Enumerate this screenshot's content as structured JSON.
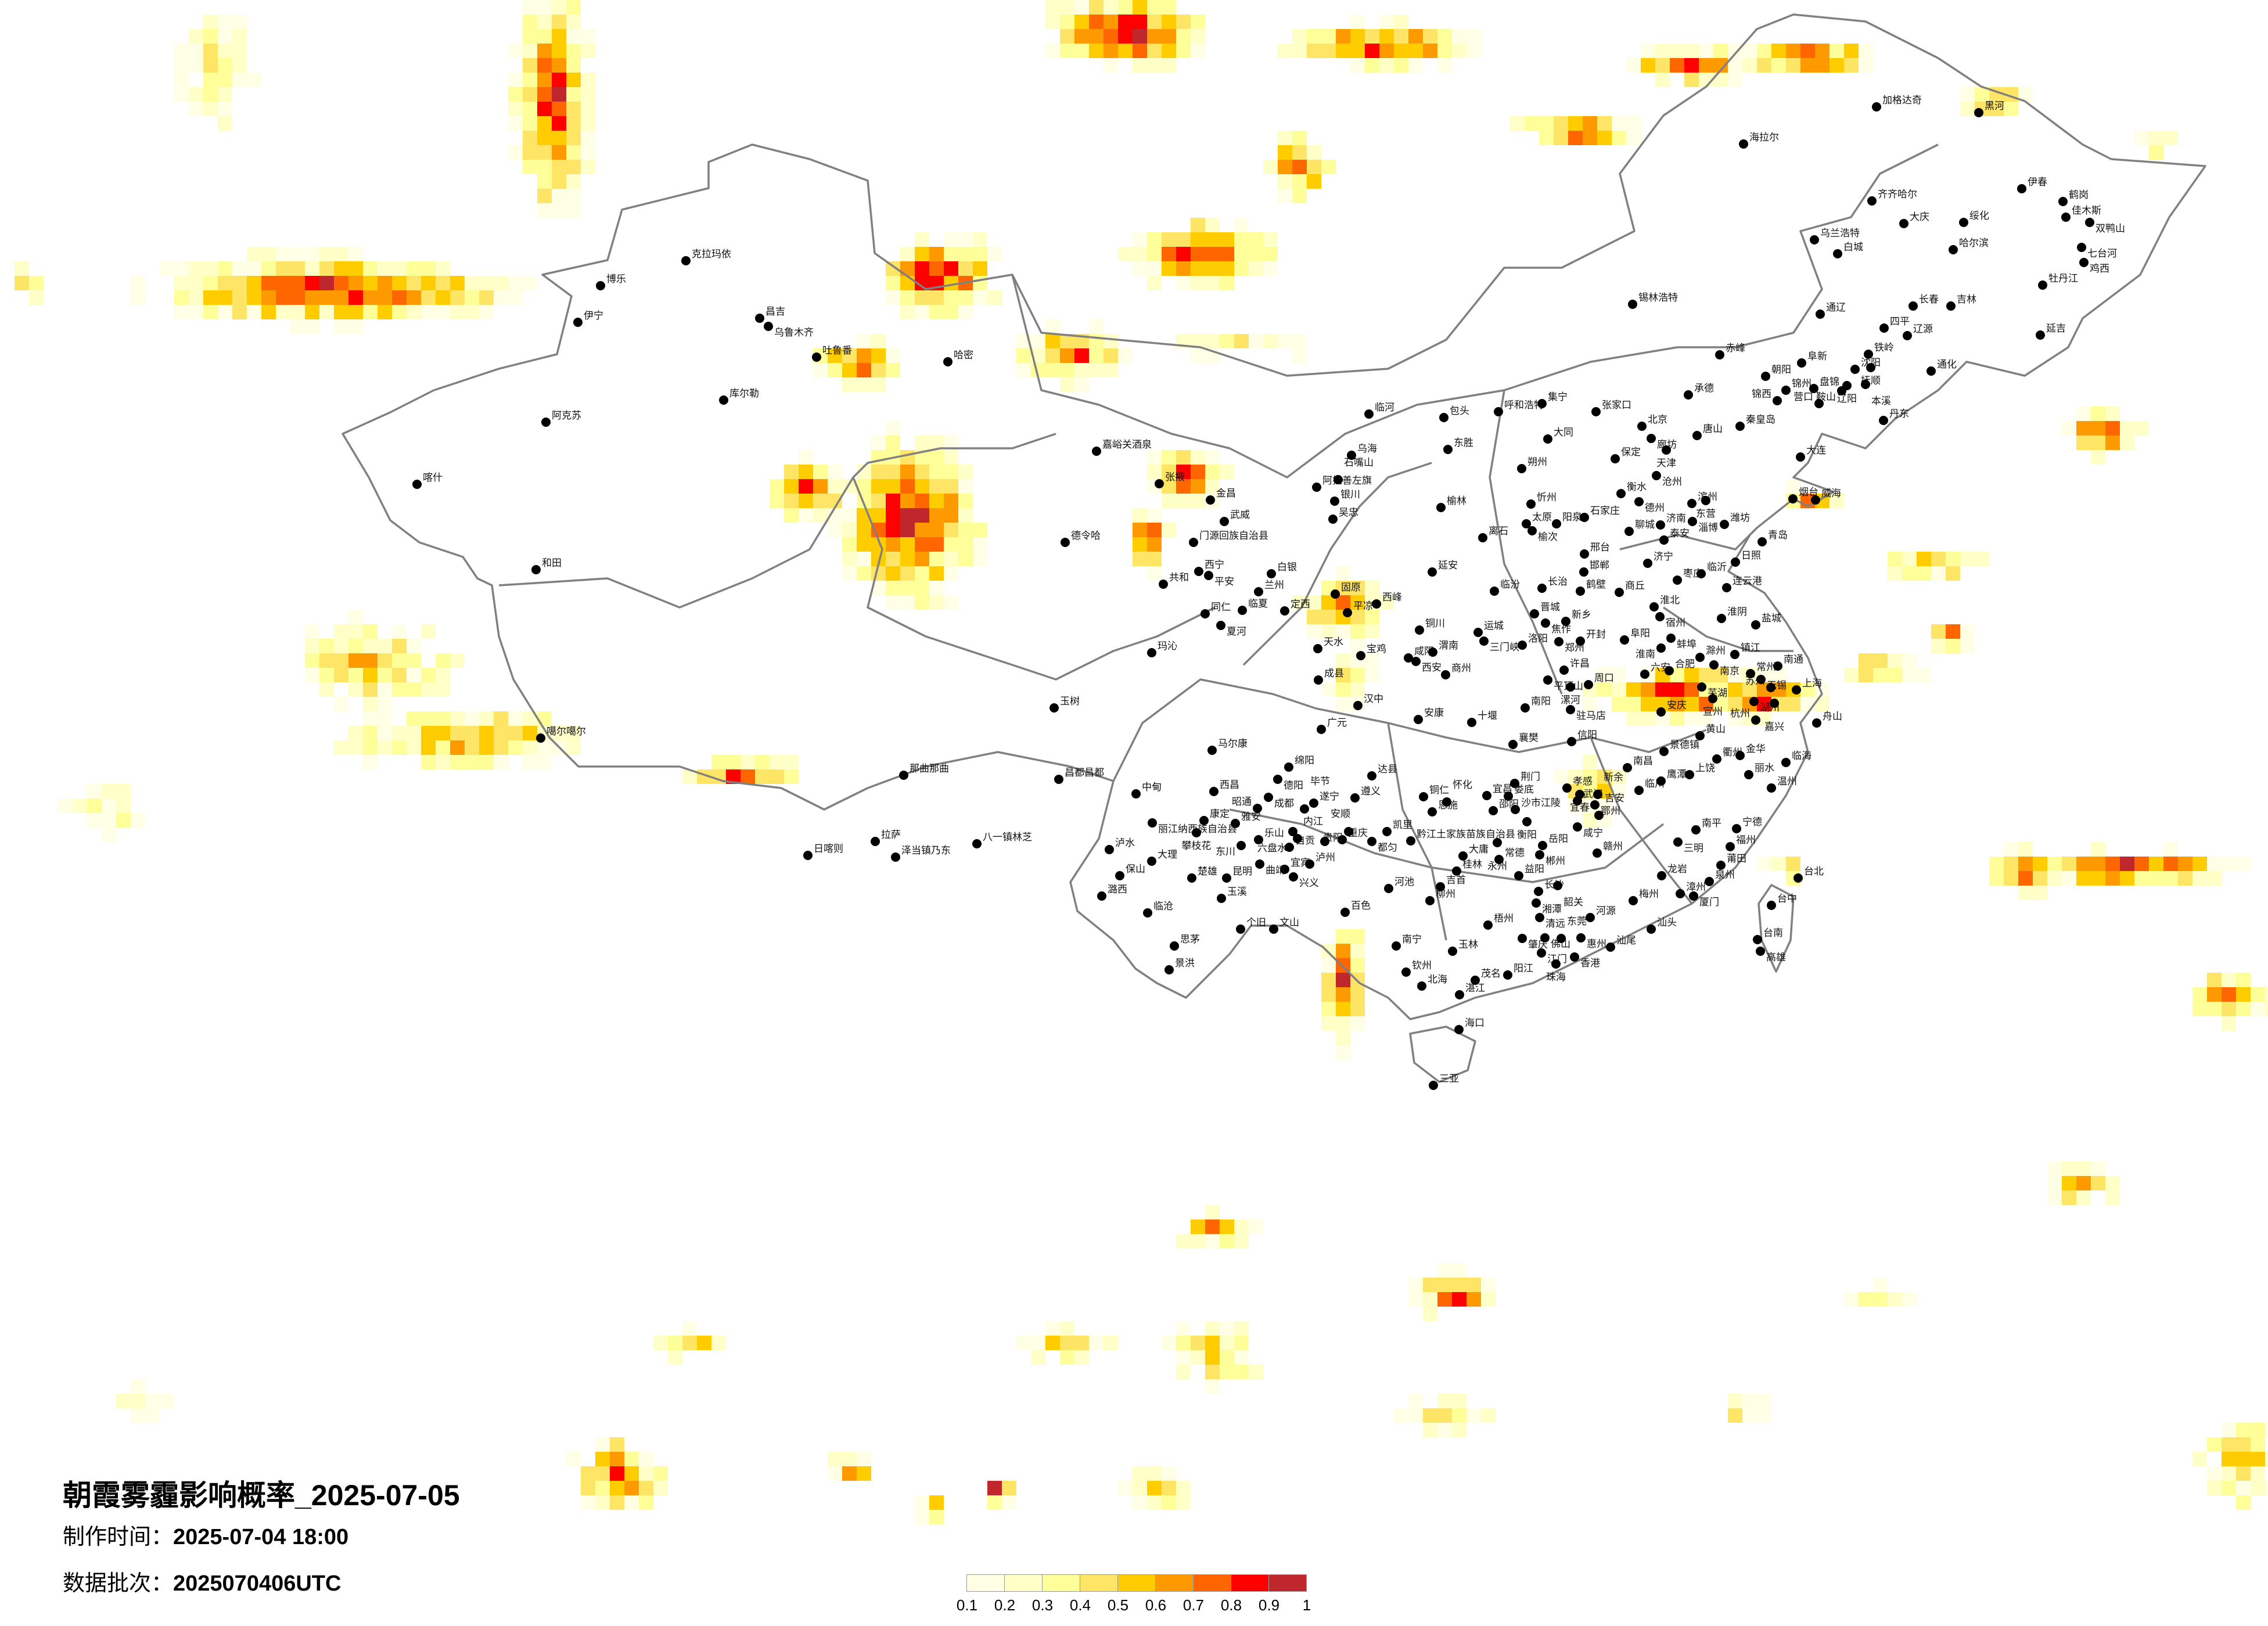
{
  "title": "朝霞雾霾影响概率_2025-07-05",
  "production_time_label": "制作时间：",
  "production_time": "2025-07-04 18:00",
  "batch_label": "数据批次：",
  "batch": "2025070406UTC",
  "legend": {
    "ticks": [
      "0.1",
      "0.2",
      "0.3",
      "0.4",
      "0.5",
      "0.6",
      "0.7",
      "0.8",
      "0.9",
      "1"
    ],
    "colors": [
      "#ffffe6",
      "#ffffc8",
      "#ffff99",
      "#ffe566",
      "#ffcc00",
      "#ff9900",
      "#ff6600",
      "#ff0000",
      "#c0272d"
    ]
  },
  "map_style": {
    "boundary_color": "#808080",
    "city_dot_color": "#000000",
    "background": "#ffffff"
  },
  "cities": [
    "克拉玛依",
    "博乐",
    "伊宁",
    "昌吉",
    "乌鲁木齐",
    "吐鲁番",
    "哈密",
    "库尔勒",
    "阿克苏",
    "喀什",
    "和田",
    "噶尔噶尔",
    "那曲那曲",
    "日喀则",
    "拉萨",
    "泽当镇乃东",
    "八一镇林芝",
    "嘉峪关酒泉",
    "张掖",
    "金昌",
    "武威",
    "德令哈",
    "门源回族自治县",
    "西宁",
    "平安",
    "共和",
    "兰州",
    "白银",
    "临夏",
    "同仁",
    "夏河",
    "定西",
    "玛沁",
    "玉树",
    "阿拉善左旗",
    "石嘴山",
    "银川",
    "吴忠",
    "临河",
    "包头",
    "呼和浩特",
    "集宁",
    "张家口",
    "东胜",
    "乌海",
    "大同",
    "朔州",
    "忻州",
    "太原",
    "榆次",
    "阳泉",
    "石家庄",
    "榆林",
    "离石",
    "邢台",
    "邯郸",
    "延安",
    "固原",
    "平凉",
    "西峰",
    "临汾",
    "长治",
    "鹤壁",
    "晋城",
    "焦作",
    "新乡",
    "铜川",
    "运城",
    "三门峡",
    "洛阳",
    "郑州",
    "开封",
    "天水",
    "宝鸡",
    "咸阳",
    "西安",
    "渭南",
    "商州",
    "许昌",
    "平顶山",
    "漯河",
    "周口",
    "成县",
    "汉中",
    "广元",
    "安康",
    "十堰",
    "南阳",
    "驻马店",
    "信阳",
    "襄樊",
    "马尔康",
    "昌都昌都",
    "绵阳",
    "德阳",
    "成都",
    "达县",
    "遂宁",
    "荆门",
    "宜昌",
    "沙市江陵",
    "孝感",
    "武汉",
    "鄂州",
    "恩施",
    "康定",
    "雅安",
    "乐山",
    "自贡",
    "内江",
    "重庆",
    "黔江土家族苗族自治县",
    "大庸",
    "常德",
    "岳阳",
    "咸宁",
    "益阳",
    "宜宾",
    "泸州",
    "吉首",
    "长沙",
    "湘潭",
    "中甸",
    "西昌",
    "昭通",
    "毕节",
    "遵义",
    "铜仁",
    "怀化",
    "娄底",
    "邵阳",
    "衡阳",
    "丽江纳西族自治县",
    "攀枝花",
    "六盘水",
    "贵阳",
    "凯里",
    "安顺",
    "都匀",
    "东川",
    "泸水",
    "大理",
    "保山",
    "楚雄",
    "昆明",
    "曲靖",
    "兴义",
    "潞西",
    "玉溪",
    "临沧",
    "个旧",
    "文山",
    "思茅",
    "景洪",
    "河池",
    "百色",
    "柳州",
    "桂林",
    "永州",
    "郴州",
    "韶关",
    "南宁",
    "玉林",
    "梧州",
    "钦州",
    "北海",
    "湛江",
    "茂名",
    "阳江",
    "清远",
    "河源",
    "肇庆",
    "佛山",
    "东莞",
    "惠州",
    "江门",
    "珠海",
    "香港",
    "汕尾",
    "汕头",
    "梅州",
    "海口",
    "三亚",
    "南昌",
    "临川",
    "鹰潭",
    "上饶",
    "景德镇",
    "衢州",
    "金华",
    "丽水",
    "温州",
    "临海",
    "新余",
    "宜春",
    "吉安",
    "赣州",
    "南平",
    "三明",
    "宁德",
    "福州",
    "莆田",
    "泉州",
    "龙岩",
    "漳州",
    "厦门",
    "台北",
    "台中",
    "台南",
    "高雄",
    "黄山",
    "加格达奇",
    "黑河",
    "海拉尔",
    "伊春",
    "齐齐哈尔",
    "鹤岗",
    "佳木斯",
    "双鸭山",
    "大庆",
    "绥化",
    "乌兰浩特",
    "白城",
    "哈尔滨",
    "七台河",
    "鸡西",
    "牡丹江",
    "锡林浩特",
    "通辽",
    "长春",
    "吉林",
    "四平",
    "辽源",
    "延吉",
    "赤峰",
    "阜新",
    "铁岭",
    "沈阳",
    "抚顺",
    "通化",
    "朝阳",
    "锦州",
    "盘锦",
    "辽阳",
    "鞍山",
    "本溪",
    "营口",
    "锦西",
    "承德",
    "北京",
    "廊坊",
    "天津",
    "唐山",
    "秦皇岛",
    "丹东",
    "大连",
    "保定",
    "沧州",
    "衡水",
    "德州",
    "滨州",
    "东营",
    "烟台",
    "威海",
    "淄博",
    "潍坊",
    "济南",
    "聊城",
    "泰安",
    "青岛",
    "济宁",
    "日照",
    "临沂",
    "枣庄",
    "连云港",
    "商丘",
    "淮北",
    "宿州",
    "淮阴",
    "盐城",
    "阜阳",
    "蚌埠",
    "淮南",
    "滁州",
    "镇江",
    "南通",
    "六安",
    "合肥",
    "南京",
    "常州",
    "无锡",
    "苏州",
    "上海",
    "芜湖",
    "宣州",
    "湖州",
    "嘉兴",
    "安庆",
    "杭州",
    "舟山"
  ]
}
